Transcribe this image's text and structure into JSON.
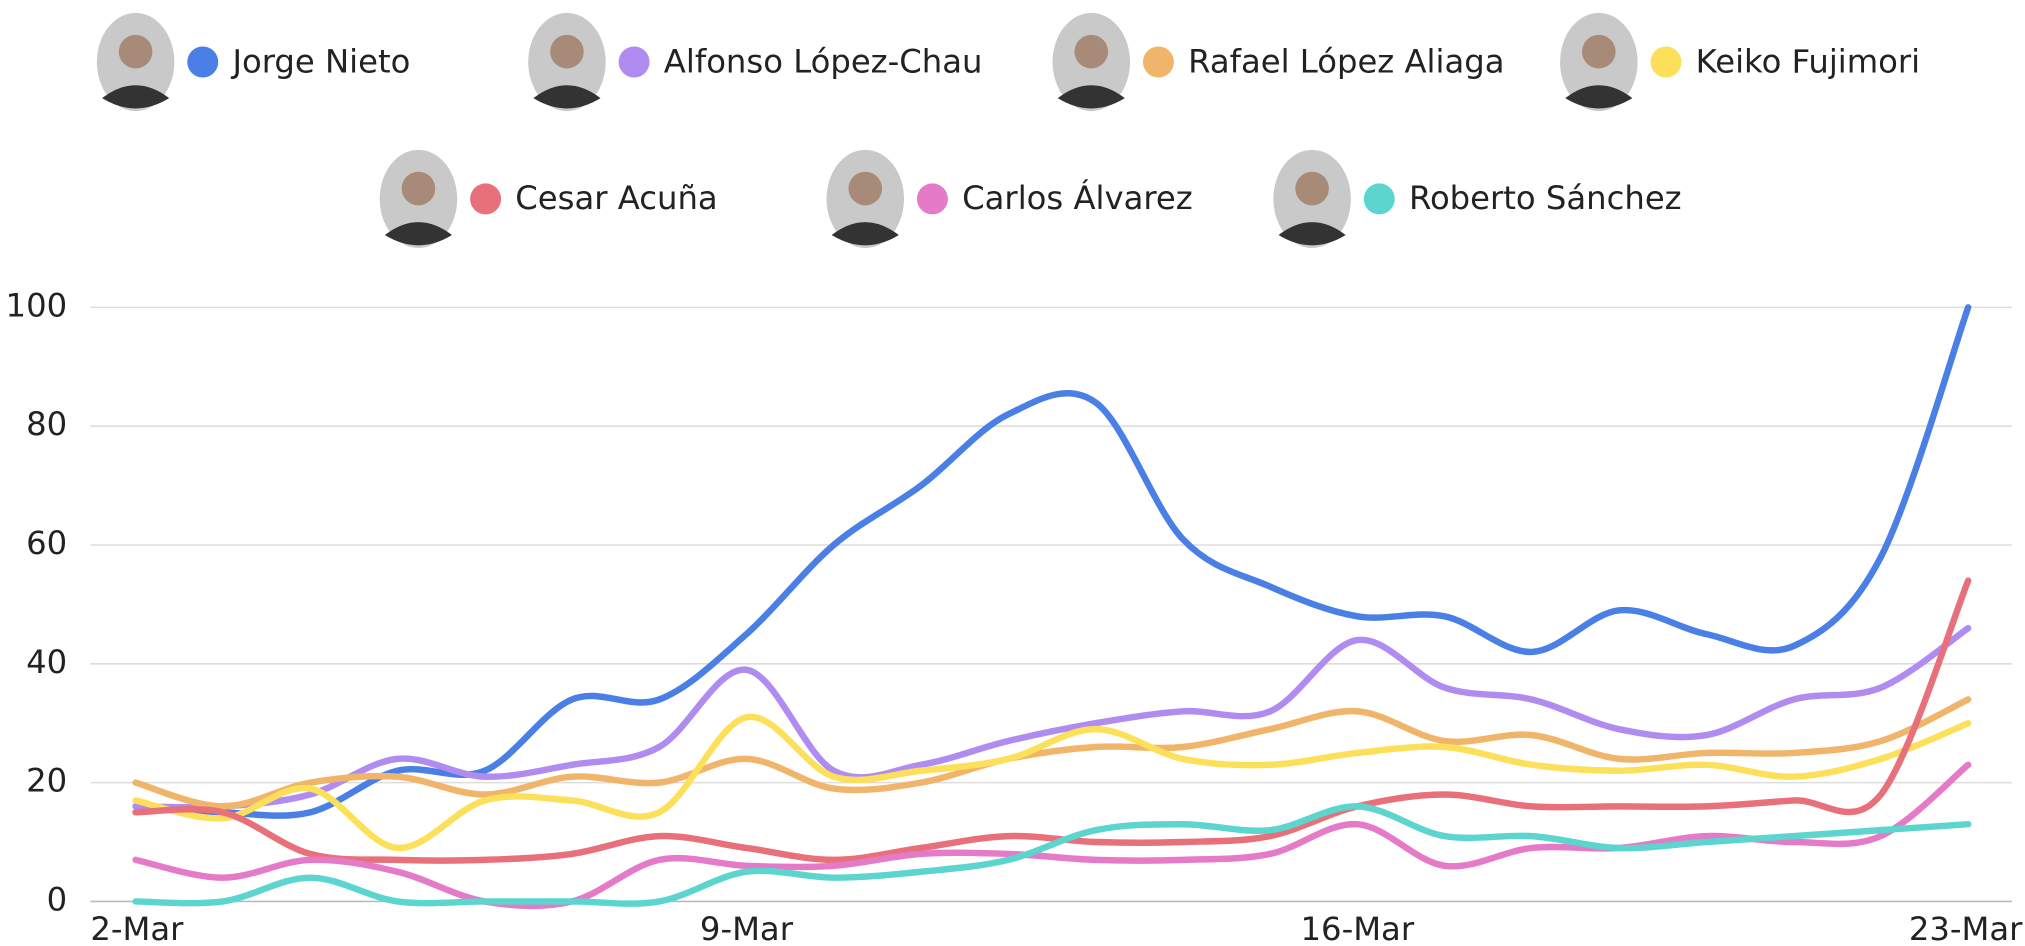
{
  "chart_data": {
    "type": "line",
    "categories": [
      "2-Mar",
      null,
      null,
      null,
      null,
      null,
      null,
      "9-Mar",
      null,
      null,
      null,
      null,
      null,
      null,
      "16-Mar",
      null,
      null,
      null,
      null,
      null,
      null,
      "23-Mar"
    ],
    "ylim": [
      0,
      100
    ],
    "yticks": [
      0,
      20,
      40,
      60,
      80,
      100
    ],
    "grid": true,
    "series": [
      {
        "name": "Jorge Nieto",
        "color": "#4a7fe5",
        "values": [
          16,
          15,
          15,
          22,
          22,
          34,
          34,
          45,
          60,
          70,
          82,
          84,
          61,
          53,
          48,
          48,
          42,
          49,
          45,
          43,
          58,
          100
        ]
      },
      {
        "name": "Alfonso López-Chau",
        "color": "#b18cf0",
        "values": [
          16,
          16,
          18,
          24,
          21,
          23,
          26,
          39,
          22,
          23,
          27,
          30,
          32,
          32,
          44,
          36,
          34,
          29,
          28,
          34,
          36,
          46
        ]
      },
      {
        "name": "Rafael López Aliaga",
        "color": "#f0b56a",
        "values": [
          20,
          16,
          20,
          21,
          18,
          21,
          20,
          24,
          19,
          20,
          24,
          26,
          26,
          29,
          32,
          27,
          28,
          24,
          25,
          25,
          27,
          34
        ]
      },
      {
        "name": "Keiko Fujimori",
        "color": "#fde05a",
        "values": [
          17,
          14,
          19,
          9,
          17,
          17,
          15,
          31,
          21,
          22,
          24,
          29,
          24,
          23,
          25,
          26,
          23,
          22,
          23,
          21,
          24,
          30
        ]
      },
      {
        "name": "Cesar Acuña",
        "color": "#e8707a",
        "values": [
          15,
          15,
          8,
          7,
          7,
          8,
          11,
          9,
          7,
          9,
          11,
          10,
          10,
          11,
          16,
          18,
          16,
          16,
          16,
          17,
          18,
          54
        ]
      },
      {
        "name": "Carlos Álvarez",
        "color": "#e47ac8",
        "values": [
          7,
          4,
          7,
          5,
          0,
          0,
          7,
          6,
          6,
          8,
          8,
          7,
          7,
          8,
          13,
          6,
          9,
          9,
          11,
          10,
          11,
          23
        ]
      },
      {
        "name": "Roberto Sánchez",
        "color": "#5dd5cf",
        "values": [
          0,
          0,
          4,
          0,
          0,
          0,
          0,
          5,
          4,
          5,
          7,
          12,
          13,
          12,
          16,
          11,
          11,
          9,
          10,
          11,
          12,
          13
        ]
      }
    ]
  }
}
